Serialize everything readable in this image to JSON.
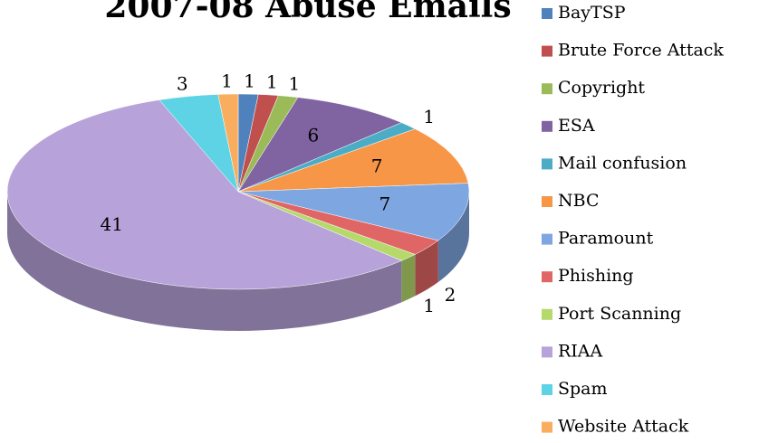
{
  "chart_data": {
    "type": "pie",
    "title": "2007-08 Abuse Emails",
    "three_d": true,
    "categories": [
      "BayTSP",
      "Brute Force Attack",
      "Copyright",
      "ESA",
      "Mail confusion",
      "NBC",
      "Paramount",
      "Phishing",
      "Port Scanning",
      "RIAA",
      "Spam",
      "Website Attack"
    ],
    "values": [
      1,
      1,
      1,
      6,
      1,
      7,
      7,
      2,
      1,
      41,
      3,
      1
    ],
    "colors": [
      "#4f81bd",
      "#c0504d",
      "#9bbb59",
      "#8064a2",
      "#4bacc6",
      "#f79646",
      "#7ea6e0",
      "#e06666",
      "#b5d96b",
      "#b7a3d9",
      "#5fd3e6",
      "#f9ad5e"
    ],
    "legend": "right"
  }
}
